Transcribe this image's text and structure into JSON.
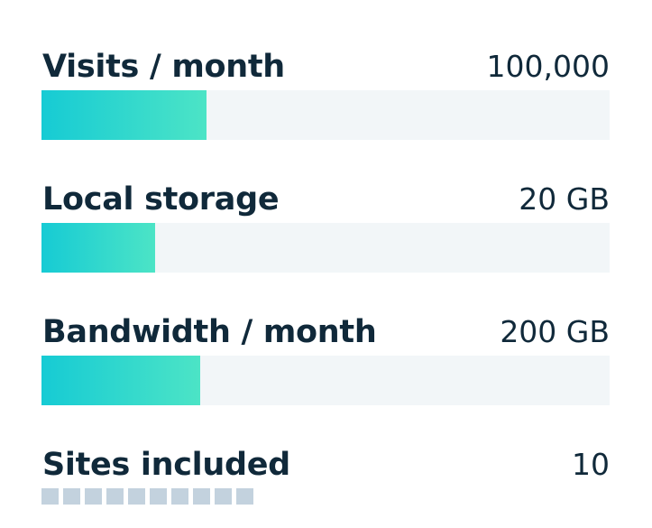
{
  "metrics": [
    {
      "label": "Visits / month",
      "value": "100,000",
      "fill_fraction": 0.29
    },
    {
      "label": "Local storage",
      "value": "20 GB",
      "fill_fraction": 0.2
    },
    {
      "label": "Bandwidth / month",
      "value": "200 GB",
      "fill_fraction": 0.28
    },
    {
      "label": "Sites included",
      "value": "10",
      "squares": 10
    }
  ],
  "colors": {
    "text": "#10293a",
    "track": "#f2f6f8",
    "fill_start": "#16cbd4",
    "fill_end": "#4ce4c6",
    "square": "#c3d2de"
  }
}
